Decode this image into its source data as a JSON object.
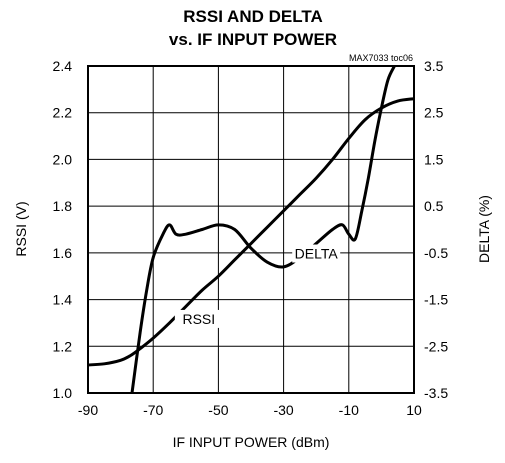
{
  "chart_data": {
    "type": "line",
    "title_line1": "RSSI AND DELTA",
    "title_line2": "vs. IF INPUT POWER",
    "watermark": "MAX7033 toc06",
    "xlabel": "IF INPUT POWER (dBm)",
    "ylabel_left": "RSSI (V)",
    "ylabel_right": "DELTA (%)",
    "xlim": [
      -90,
      10
    ],
    "ylim_left": [
      1.0,
      2.4
    ],
    "ylim_right": [
      -3.5,
      3.5
    ],
    "x_ticks": [
      "-90",
      "-70",
      "-50",
      "-30",
      "-10",
      "10"
    ],
    "y_ticks_left": [
      "1.0",
      "1.2",
      "1.4",
      "1.6",
      "1.8",
      "2.0",
      "2.2",
      "2.4"
    ],
    "y_ticks_right": [
      "-3.5",
      "-2.5",
      "-1.5",
      "-0.5",
      "0.5",
      "1.5",
      "2.5",
      "3.5"
    ],
    "grid": true,
    "series": [
      {
        "name": "RSSI",
        "axis": "left",
        "label_at": {
          "x": -56,
          "y": 1.3
        },
        "x": [
          -90,
          -85,
          -80,
          -77,
          -74,
          -70,
          -65,
          -60,
          -55,
          -50,
          -45,
          -40,
          -35,
          -30,
          -25,
          -20,
          -15,
          -10,
          -5,
          0,
          5,
          10
        ],
        "y": [
          1.12,
          1.125,
          1.14,
          1.16,
          1.19,
          1.235,
          1.3,
          1.37,
          1.44,
          1.5,
          1.57,
          1.64,
          1.71,
          1.78,
          1.85,
          1.92,
          2.0,
          2.09,
          2.17,
          2.22,
          2.25,
          2.26
        ]
      },
      {
        "name": "DELTA",
        "axis": "right",
        "label_at": {
          "x": -20,
          "y": -0.6
        },
        "x": [
          -76.5,
          -74,
          -72,
          -70,
          -67,
          -65,
          -63,
          -60,
          -55,
          -50,
          -45,
          -40,
          -35,
          -30,
          -25,
          -20,
          -15,
          -12,
          -10,
          -8,
          -6,
          -4,
          -2,
          0,
          2,
          4
        ],
        "y": [
          -3.5,
          -2.2,
          -1.3,
          -0.6,
          -0.1,
          0.1,
          -0.1,
          -0.1,
          0.0,
          0.1,
          0.0,
          -0.4,
          -0.7,
          -0.8,
          -0.6,
          -0.3,
          0.0,
          0.1,
          -0.1,
          -0.2,
          0.4,
          1.1,
          1.9,
          2.6,
          3.2,
          3.5
        ]
      }
    ]
  }
}
